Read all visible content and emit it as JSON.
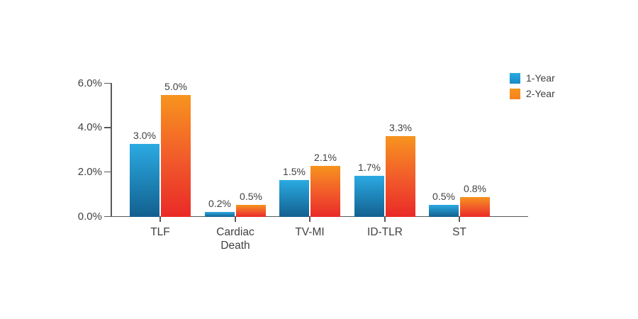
{
  "chart_data": {
    "type": "bar",
    "title": "",
    "xlabel": "",
    "ylabel": "",
    "categories": [
      "TLF",
      "Cardiac Death",
      "TV-MI",
      "ID-TLR",
      "ST"
    ],
    "series": [
      {
        "name": "1-Year",
        "values": [
          3.0,
          0.2,
          1.5,
          1.7,
          0.5
        ],
        "labels": [
          "3.0%",
          "0.2%",
          "1.5%",
          "1.7%",
          "0.5%"
        ]
      },
      {
        "name": "2-Year",
        "values": [
          5.0,
          0.5,
          2.1,
          3.3,
          0.8
        ],
        "labels": [
          "5.0%",
          "0.5%",
          "2.1%",
          "3.3%",
          "0.8%"
        ]
      }
    ],
    "ylim": [
      0,
      6
    ],
    "ytick_values": [
      0,
      2,
      4,
      6
    ],
    "ytick_labels": [
      "0.0%",
      "2.0%",
      "4.0%",
      "6.0%"
    ],
    "grid": false,
    "legend_position": "top-right"
  },
  "colors": {
    "bar_blue_top": "#2baae2",
    "bar_blue_bottom": "#12608f",
    "bar_orange_top": "#f7941e",
    "bar_orange_mid": "#f1582b",
    "bar_orange_bottom": "#e92a27",
    "legend_blue": "#1789c5",
    "legend_orange": "#f58220",
    "axis": "#58595b",
    "text": "#414042"
  }
}
